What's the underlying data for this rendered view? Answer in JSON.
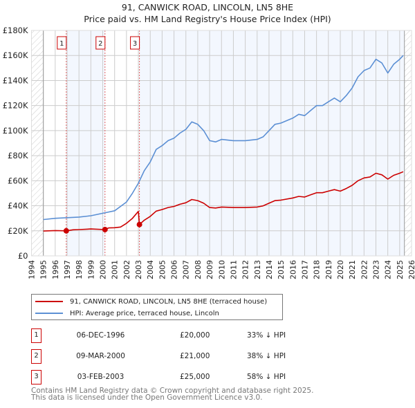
{
  "title_line1": "91, CANWICK ROAD, LINCOLN, LN5 8HE",
  "title_line2": "Price paid vs. HM Land Registry's House Price Index (HPI)",
  "colors": {
    "property": "#cc0000",
    "hpi": "#5b8fd4",
    "shade": "#f3f7fe",
    "grid": "#cccccc"
  },
  "chart_data": {
    "type": "line",
    "xlim": [
      1994,
      2026
    ],
    "ylim": [
      0,
      180000
    ],
    "x_ticks": [
      1994,
      1995,
      1996,
      1997,
      1998,
      1999,
      2000,
      2001,
      2002,
      2003,
      2004,
      2005,
      2006,
      2007,
      2008,
      2009,
      2010,
      2011,
      2012,
      2013,
      2014,
      2015,
      2016,
      2017,
      2018,
      2019,
      2020,
      2021,
      2022,
      2023,
      2024,
      2025,
      2026
    ],
    "y_ticks": [
      0,
      20000,
      40000,
      60000,
      80000,
      100000,
      120000,
      140000,
      160000,
      180000
    ],
    "y_tick_labels": [
      "£0",
      "£20K",
      "£40K",
      "£60K",
      "£80K",
      "£100K",
      "£120K",
      "£140K",
      "£160K",
      "£180K"
    ],
    "grid": true,
    "data_range": [
      1995,
      2025.4
    ],
    "series": [
      {
        "name": "91, CANWICK ROAD, LINCOLN, LN5 8HE (terraced house)",
        "color": "#cc0000",
        "x": [
          1995,
          1996,
          1996.93,
          1997.5,
          1998,
          1999,
          2000.19,
          2000.5,
          2001,
          2001.5,
          2002,
          2002.5,
          2003.0,
          2003.09,
          2003.5,
          2004,
          2004.5,
          2005,
          2005.5,
          2006,
          2006.5,
          2007,
          2007.5,
          2008,
          2008.5,
          2009,
          2009.5,
          2010,
          2011,
          2012,
          2013,
          2013.5,
          2014,
          2014.5,
          2015,
          2016,
          2016.5,
          2017,
          2017.5,
          2018,
          2018.5,
          2019,
          2019.5,
          2020,
          2020.5,
          2021,
          2021.5,
          2022,
          2022.5,
          2023,
          2023.5,
          2024,
          2024.5,
          2025,
          2025.3
        ],
        "y": [
          19800,
          20200,
          20000,
          20800,
          21000,
          21500,
          21000,
          22300,
          22500,
          23000,
          26000,
          30000,
          35500,
          25000,
          28500,
          31500,
          35700,
          37000,
          38600,
          39500,
          41200,
          42400,
          45000,
          44100,
          42000,
          38600,
          38200,
          39000,
          38600,
          38600,
          39000,
          39900,
          42000,
          44100,
          44500,
          46200,
          47500,
          47000,
          48700,
          50400,
          50400,
          51700,
          52900,
          51700,
          53800,
          56300,
          60000,
          62200,
          63000,
          66000,
          64700,
          61300,
          64300,
          66000,
          67200
        ]
      },
      {
        "name": "HPI: Average price, terraced house, Lincoln",
        "color": "#5b8fd4",
        "x": [
          1995,
          1996,
          1997,
          1998,
          1999,
          2000,
          2001,
          2002,
          2002.5,
          2003,
          2003.5,
          2004,
          2004.5,
          2005,
          2005.5,
          2006,
          2006.5,
          2007,
          2007.5,
          2008,
          2008.5,
          2009,
          2009.5,
          2010,
          2011,
          2012,
          2013,
          2013.5,
          2014,
          2014.5,
          2015,
          2016,
          2016.5,
          2017,
          2017.5,
          2018,
          2018.5,
          2019,
          2019.5,
          2020,
          2020.5,
          2021,
          2021.5,
          2022,
          2022.5,
          2023,
          2023.5,
          2024,
          2024.5,
          2025,
          2025.3
        ],
        "y": [
          29000,
          30000,
          30500,
          31000,
          32000,
          34000,
          36000,
          43000,
          50000,
          58000,
          68000,
          75000,
          85000,
          88000,
          92000,
          94000,
          98000,
          101000,
          107000,
          105000,
          100000,
          92000,
          91000,
          93000,
          92000,
          92000,
          93000,
          95000,
          100000,
          105000,
          106000,
          110000,
          113000,
          112000,
          116000,
          120000,
          120000,
          123000,
          126000,
          123000,
          128000,
          134000,
          143000,
          148000,
          150000,
          157000,
          154000,
          146000,
          153000,
          157000,
          160000
        ]
      }
    ],
    "sales": [
      {
        "label": "1",
        "x": 1996.93,
        "y": 20000
      },
      {
        "label": "2",
        "x": 2000.19,
        "y": 21000
      },
      {
        "label": "3",
        "x": 2003.09,
        "y": 25000
      }
    ]
  },
  "legend": {
    "property": "91, CANWICK ROAD, LINCOLN, LN5 8HE (terraced house)",
    "hpi": "HPI: Average price, terraced house, Lincoln"
  },
  "transactions": [
    {
      "num": "1",
      "date": "06-DEC-1996",
      "price": "£20,000",
      "hpi": "33% ↓ HPI"
    },
    {
      "num": "2",
      "date": "09-MAR-2000",
      "price": "£21,000",
      "hpi": "38% ↓ HPI"
    },
    {
      "num": "3",
      "date": "03-FEB-2003",
      "price": "£25,000",
      "hpi": "58% ↓ HPI"
    }
  ],
  "footer": {
    "line1": "Contains HM Land Registry data © Crown copyright and database right 2025.",
    "line2": "This data is licensed under the Open Government Licence v3.0."
  }
}
